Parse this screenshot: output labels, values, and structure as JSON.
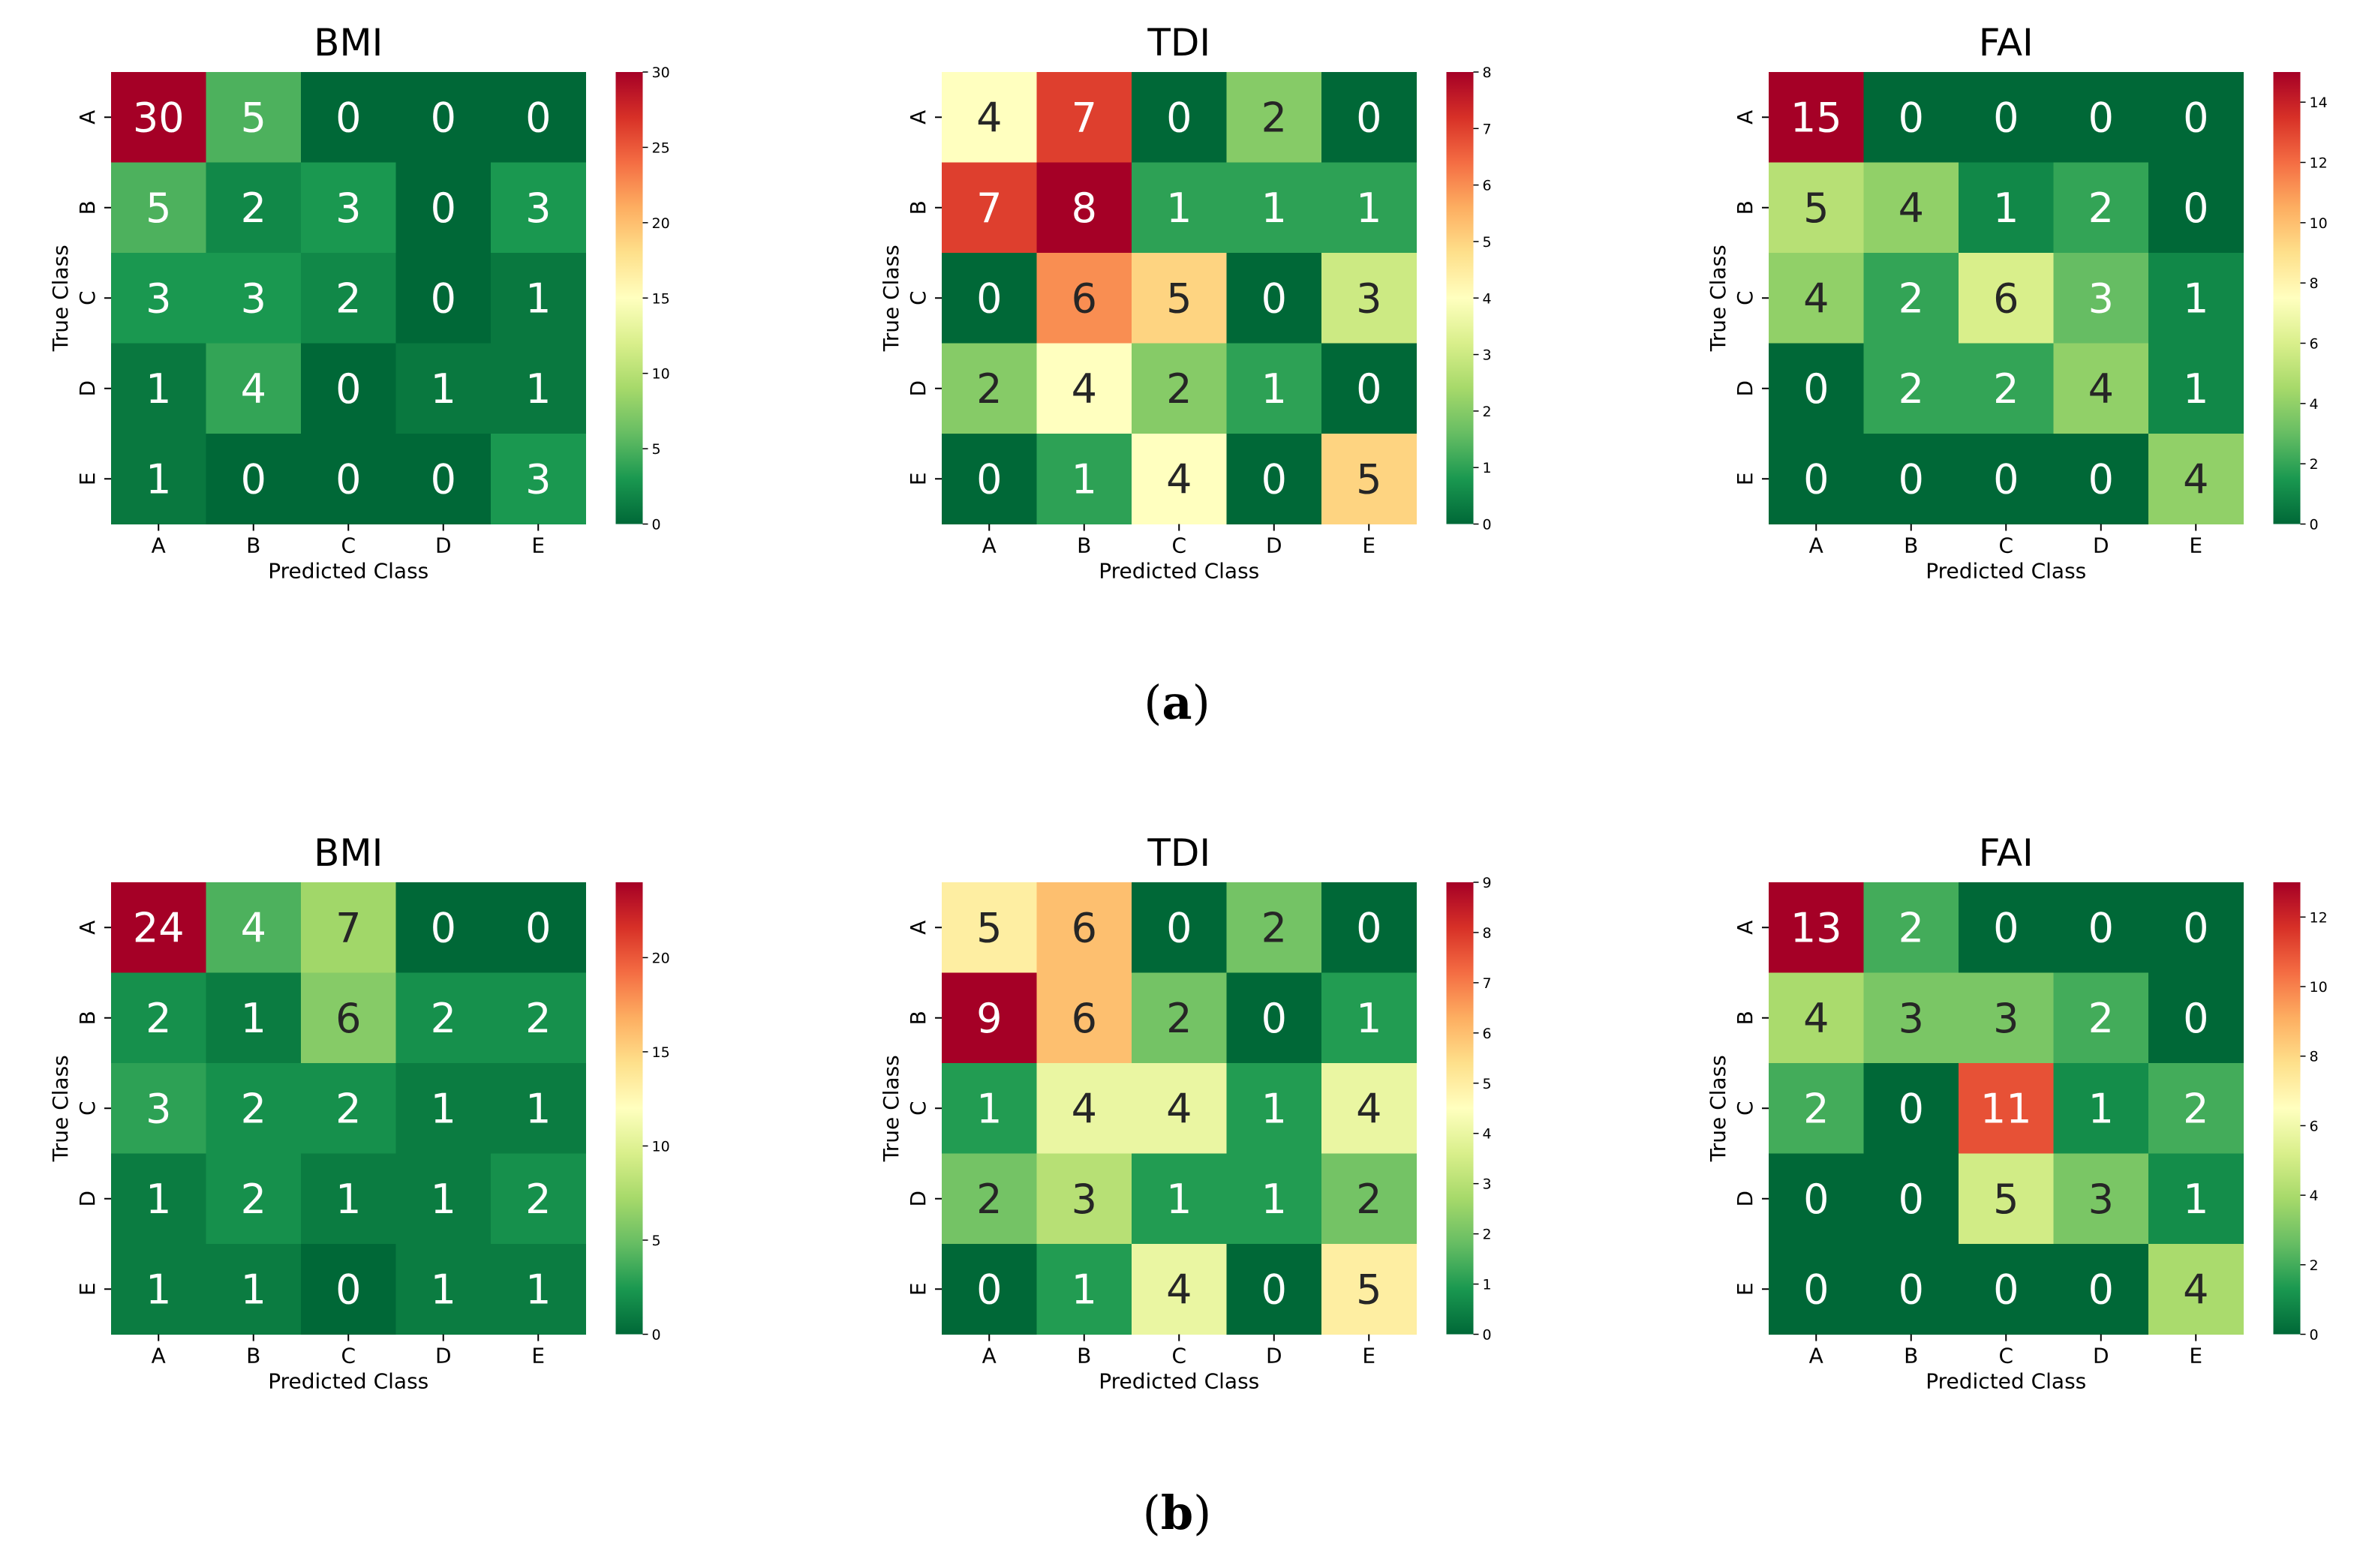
{
  "panels": [
    {
      "label": "a",
      "caption_open": "(",
      "caption_close": ")"
    },
    {
      "label": "b",
      "caption_open": "(",
      "caption_close": ")"
    }
  ],
  "colormap": "RdYlGn_r",
  "chart_data": [
    {
      "type": "heatmap",
      "panel": "a",
      "title": "BMI",
      "xlabel": "Predicted Class",
      "ylabel": "True Class",
      "x_categories": [
        "A",
        "B",
        "C",
        "D",
        "E"
      ],
      "y_categories": [
        "A",
        "B",
        "C",
        "D",
        "E"
      ],
      "values": [
        [
          30,
          5,
          0,
          0,
          0
        ],
        [
          5,
          2,
          3,
          0,
          3
        ],
        [
          3,
          3,
          2,
          0,
          1
        ],
        [
          1,
          4,
          0,
          1,
          1
        ],
        [
          1,
          0,
          0,
          0,
          3
        ]
      ],
      "colorbar": {
        "min": 0,
        "max": 30,
        "ticks": [
          0,
          5,
          10,
          15,
          20,
          25,
          30
        ]
      }
    },
    {
      "type": "heatmap",
      "panel": "a",
      "title": "TDI",
      "xlabel": "Predicted Class",
      "ylabel": "True Class",
      "x_categories": [
        "A",
        "B",
        "C",
        "D",
        "E"
      ],
      "y_categories": [
        "A",
        "B",
        "C",
        "D",
        "E"
      ],
      "values": [
        [
          4,
          7,
          0,
          2,
          0
        ],
        [
          7,
          8,
          1,
          1,
          1
        ],
        [
          0,
          6,
          5,
          0,
          3
        ],
        [
          2,
          4,
          2,
          1,
          0
        ],
        [
          0,
          1,
          4,
          0,
          5
        ]
      ],
      "colorbar": {
        "min": 0,
        "max": 8,
        "ticks": [
          0,
          1,
          2,
          3,
          4,
          5,
          6,
          7,
          8
        ]
      }
    },
    {
      "type": "heatmap",
      "panel": "a",
      "title": "FAI",
      "xlabel": "Predicted Class",
      "ylabel": "True Class",
      "x_categories": [
        "A",
        "B",
        "C",
        "D",
        "E"
      ],
      "y_categories": [
        "A",
        "B",
        "C",
        "D",
        "E"
      ],
      "values": [
        [
          15,
          0,
          0,
          0,
          0
        ],
        [
          5,
          4,
          1,
          2,
          0
        ],
        [
          4,
          2,
          6,
          3,
          1
        ],
        [
          0,
          2,
          2,
          4,
          1
        ],
        [
          0,
          0,
          0,
          0,
          4
        ]
      ],
      "colorbar": {
        "min": 0,
        "max": 15,
        "ticks": [
          0,
          2,
          4,
          6,
          8,
          10,
          12,
          14
        ]
      }
    },
    {
      "type": "heatmap",
      "panel": "b",
      "title": "BMI",
      "xlabel": "Predicted Class",
      "ylabel": "True Class",
      "x_categories": [
        "A",
        "B",
        "C",
        "D",
        "E"
      ],
      "y_categories": [
        "A",
        "B",
        "C",
        "D",
        "E"
      ],
      "values": [
        [
          24,
          4,
          7,
          0,
          0
        ],
        [
          2,
          1,
          6,
          2,
          2
        ],
        [
          3,
          2,
          2,
          1,
          1
        ],
        [
          1,
          2,
          1,
          1,
          2
        ],
        [
          1,
          1,
          0,
          1,
          1
        ]
      ],
      "colorbar": {
        "min": 0,
        "max": 24,
        "ticks": [
          0,
          5,
          10,
          15,
          20
        ]
      }
    },
    {
      "type": "heatmap",
      "panel": "b",
      "title": "TDI",
      "xlabel": "Predicted Class",
      "ylabel": "True Class",
      "x_categories": [
        "A",
        "B",
        "C",
        "D",
        "E"
      ],
      "y_categories": [
        "A",
        "B",
        "C",
        "D",
        "E"
      ],
      "values": [
        [
          5,
          6,
          0,
          2,
          0
        ],
        [
          9,
          6,
          2,
          0,
          1
        ],
        [
          1,
          4,
          4,
          1,
          4
        ],
        [
          2,
          3,
          1,
          1,
          2
        ],
        [
          0,
          1,
          4,
          0,
          5
        ]
      ],
      "colorbar": {
        "min": 0,
        "max": 9,
        "ticks": [
          0,
          1,
          2,
          3,
          4,
          5,
          6,
          7,
          8,
          9
        ]
      }
    },
    {
      "type": "heatmap",
      "panel": "b",
      "title": "FAI",
      "xlabel": "Predicted Class",
      "ylabel": "True Class",
      "x_categories": [
        "A",
        "B",
        "C",
        "D",
        "E"
      ],
      "y_categories": [
        "A",
        "B",
        "C",
        "D",
        "E"
      ],
      "values": [
        [
          13,
          2,
          0,
          0,
          0
        ],
        [
          4,
          3,
          3,
          2,
          0
        ],
        [
          2,
          0,
          11,
          1,
          2
        ],
        [
          0,
          0,
          5,
          3,
          1
        ],
        [
          0,
          0,
          0,
          0,
          4
        ]
      ],
      "colorbar": {
        "min": 0,
        "max": 13,
        "ticks": [
          0,
          2,
          4,
          6,
          8,
          10,
          12
        ]
      }
    }
  ]
}
